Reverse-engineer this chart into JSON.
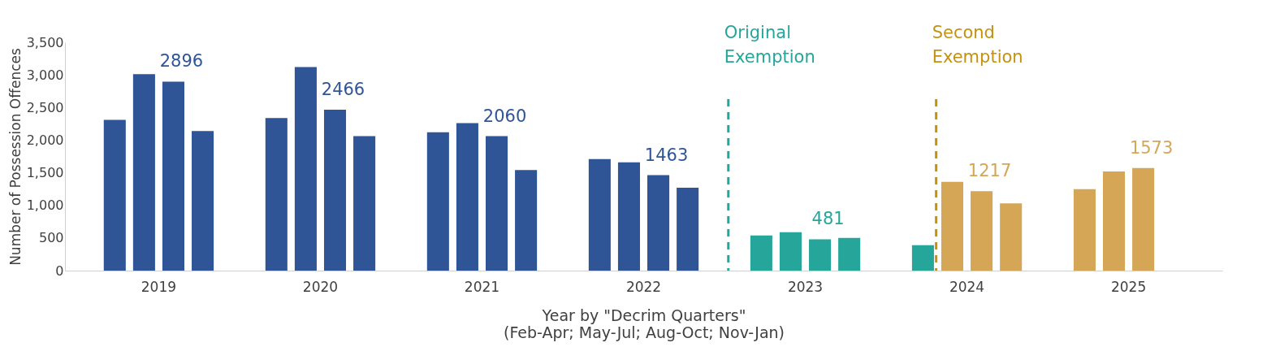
{
  "chart_data": {
    "type": "bar",
    "xlabel": "Year by \"Decrim Quarters\"\n(Feb-Apr; May-Jul; Aug-Oct; Nov-Jan)",
    "ylabel": "Number of Possession Offences",
    "categories": [
      "2019",
      "2020",
      "2021",
      "2022",
      "2023",
      "2024",
      "2025"
    ],
    "series": [
      {
        "colors": [
          "#2f5597",
          "#2f5597",
          "#2f5597",
          "#2f5597",
          "#26a69a",
          "#26a69a",
          "#d4a656"
        ],
        "values": [
          2310,
          2340,
          2120,
          1710,
          540,
          390,
          1250
        ]
      },
      {
        "colors": [
          "#2f5597",
          "#2f5597",
          "#2f5597",
          "#2f5597",
          "#26a69a",
          "#d4a656",
          "#d4a656"
        ],
        "values": [
          3010,
          3120,
          2260,
          1660,
          590,
          1360,
          1520
        ]
      },
      {
        "colors": [
          "#2f5597",
          "#2f5597",
          "#2f5597",
          "#2f5597",
          "#26a69a",
          "#d4a656",
          "#d4a656"
        ],
        "values": [
          2896,
          2466,
          2060,
          1463,
          481,
          1217,
          1573
        ],
        "value_labels": [
          "2896",
          "2466",
          "2060",
          "1463",
          "481",
          "1217",
          "1573"
        ]
      },
      {
        "colors": [
          "#2f5597",
          "#2f5597",
          "#2f5597",
          "#2f5597",
          "#26a69a",
          "#d4a656",
          "#d4a656"
        ],
        "values": [
          2140,
          2060,
          1540,
          1270,
          500,
          1030,
          null
        ]
      }
    ],
    "ylim": [
      0,
      3500
    ],
    "yticks": [
      {
        "value": 0,
        "label": "0"
      },
      {
        "value": 500,
        "label": "500"
      },
      {
        "value": 1000,
        "label": "1,000"
      },
      {
        "value": 1500,
        "label": "1,500"
      },
      {
        "value": 2000,
        "label": "2,000"
      },
      {
        "value": 2500,
        "label": "2,500"
      },
      {
        "value": 3000,
        "label": "3,000"
      },
      {
        "value": 3500,
        "label": "3,500"
      }
    ],
    "ref_lines": [
      {
        "axis": "x",
        "value": "2023",
        "label": "Original Exemption",
        "color": "#26a69a",
        "line_style": "dashed"
      },
      {
        "axis": "x",
        "value": "2024",
        "label": "Second Exemption",
        "color": "#c49212",
        "line_style": "dashed"
      }
    ],
    "grid": false
  }
}
